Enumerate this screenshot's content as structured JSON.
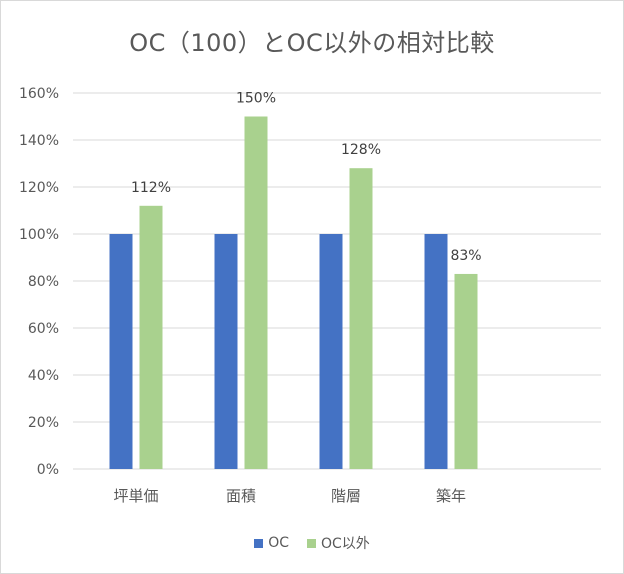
{
  "chart_data": {
    "type": "bar",
    "title": "OC（100）とOC以外の相対比較",
    "categories": [
      "坪単価",
      "面積",
      "階層",
      "築年"
    ],
    "series": [
      {
        "name": "OC",
        "values": [
          100,
          100,
          100,
          100
        ],
        "color": "#4472C4",
        "labels": [
          "",
          "",
          "",
          ""
        ]
      },
      {
        "name": "OC以外",
        "values": [
          112,
          150,
          128,
          83
        ],
        "color": "#A9D18E",
        "labels": [
          "112%",
          "150%",
          "128%",
          "83%"
        ]
      }
    ],
    "ylim": [
      0,
      160
    ],
    "yticks": [
      "0%",
      "20%",
      "40%",
      "60%",
      "80%",
      "100%",
      "120%",
      "140%",
      "160%"
    ],
    "grid": true,
    "legend": "bottom",
    "gridline_color": "#d9d9d9",
    "text_color": "#595959"
  }
}
